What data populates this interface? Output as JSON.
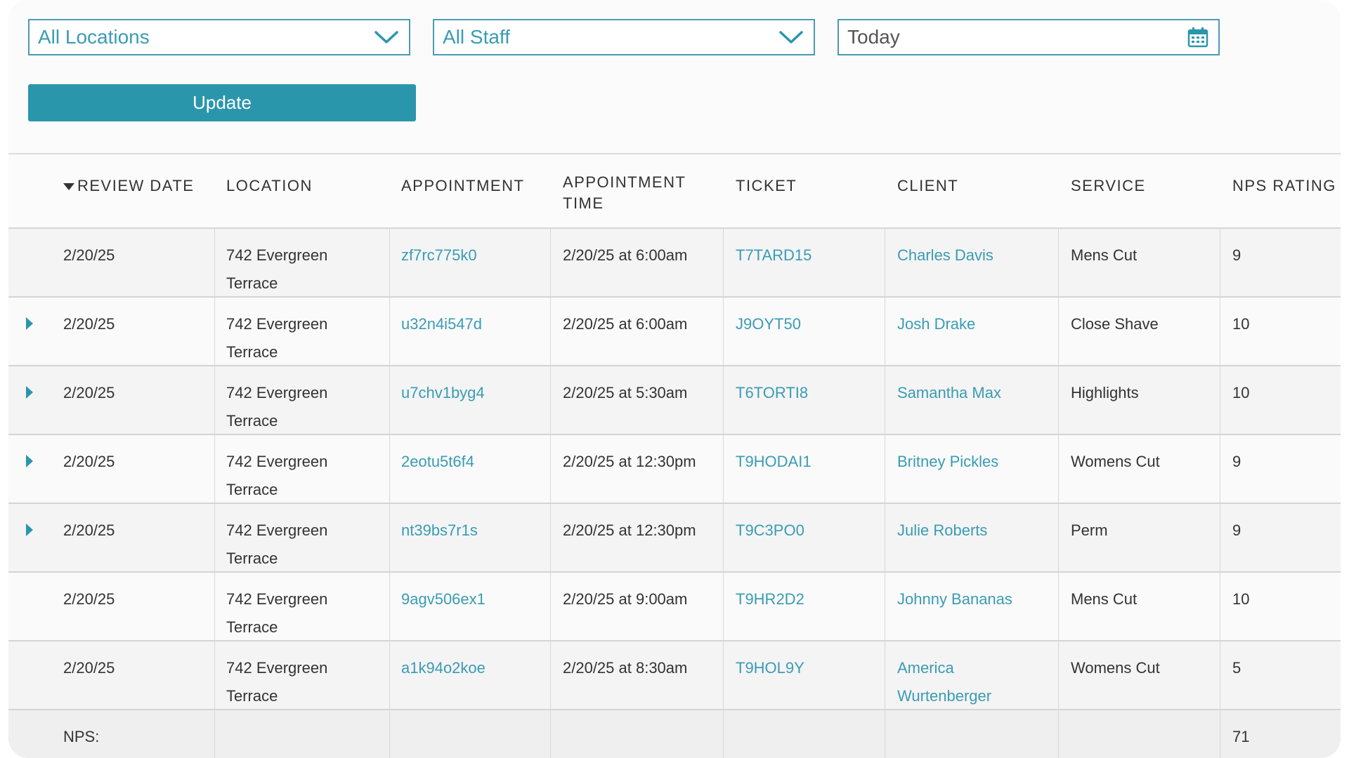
{
  "filters": {
    "location": "All Locations",
    "staff": "All Staff",
    "date": "Today",
    "update_label": "Update"
  },
  "icons": {
    "location_chevron": "chevron-down-icon",
    "staff_chevron": "chevron-down-icon",
    "calendar": "calendar-icon",
    "expand": "expand-arrow-icon",
    "sort": "sort-desc-icon"
  },
  "colors": {
    "accent": "#2a96ac",
    "link": "#3a9cb4",
    "text": "#333333"
  },
  "table": {
    "columns": [
      "REVIEW DATE",
      "LOCATION",
      "APPOINTMENT",
      "APPOINTMENT TIME",
      "TICKET",
      "CLIENT",
      "SERVICE",
      "NPS RATING"
    ],
    "rows": [
      {
        "expand": false,
        "date": "2/20/25",
        "loc1": "742 Evergreen",
        "loc2": "Terrace",
        "appt": "zf7rc775k0",
        "time": "2/20/25 at 6:00am",
        "ticket": "T7TARD15",
        "client1": "Charles Davis",
        "client2": "",
        "service": "Mens Cut",
        "nps": "9"
      },
      {
        "expand": true,
        "date": "2/20/25",
        "loc1": "742 Evergreen",
        "loc2": "Terrace",
        "appt": "u32n4i547d",
        "time": "2/20/25 at 6:00am",
        "ticket": "J9OYT50",
        "client1": "Josh Drake",
        "client2": "",
        "service": "Close Shave",
        "nps": "10"
      },
      {
        "expand": true,
        "date": "2/20/25",
        "loc1": "742 Evergreen",
        "loc2": "Terrace",
        "appt": "u7chv1byg4",
        "time": "2/20/25 at 5:30am",
        "ticket": "T6TORTI8",
        "client1": "Samantha Max",
        "client2": "",
        "service": "Highlights",
        "nps": "10"
      },
      {
        "expand": true,
        "date": "2/20/25",
        "loc1": "742 Evergreen",
        "loc2": "Terrace",
        "appt": "2eotu5t6f4",
        "time": "2/20/25 at 12:30pm",
        "ticket": "T9HODAI1",
        "client1": "Britney Pickles",
        "client2": "",
        "service": "Womens Cut",
        "nps": "9"
      },
      {
        "expand": true,
        "date": "2/20/25",
        "loc1": "742 Evergreen",
        "loc2": "Terrace",
        "appt": "nt39bs7r1s",
        "time": "2/20/25 at 12:30pm",
        "ticket": "T9C3PO0",
        "client1": "Julie Roberts",
        "client2": "",
        "service": "Perm",
        "nps": "9"
      },
      {
        "expand": false,
        "date": "2/20/25",
        "loc1": "742 Evergreen",
        "loc2": "Terrace",
        "appt": "9agv506ex1",
        "time": "2/20/25 at 9:00am",
        "ticket": "T9HR2D2",
        "client1": "Johnny Bananas",
        "client2": "",
        "service": "Mens Cut",
        "nps": "10"
      },
      {
        "expand": false,
        "date": "2/20/25",
        "loc1": "742 Evergreen",
        "loc2": "Terrace",
        "appt": "a1k94o2koe",
        "time": "2/20/25 at 8:30am",
        "ticket": "T9HOL9Y",
        "client1": "America",
        "client2": "Wurtenberger",
        "service": "Womens Cut",
        "nps": "5"
      }
    ],
    "footer": {
      "label": "NPS:",
      "value": "71"
    }
  }
}
